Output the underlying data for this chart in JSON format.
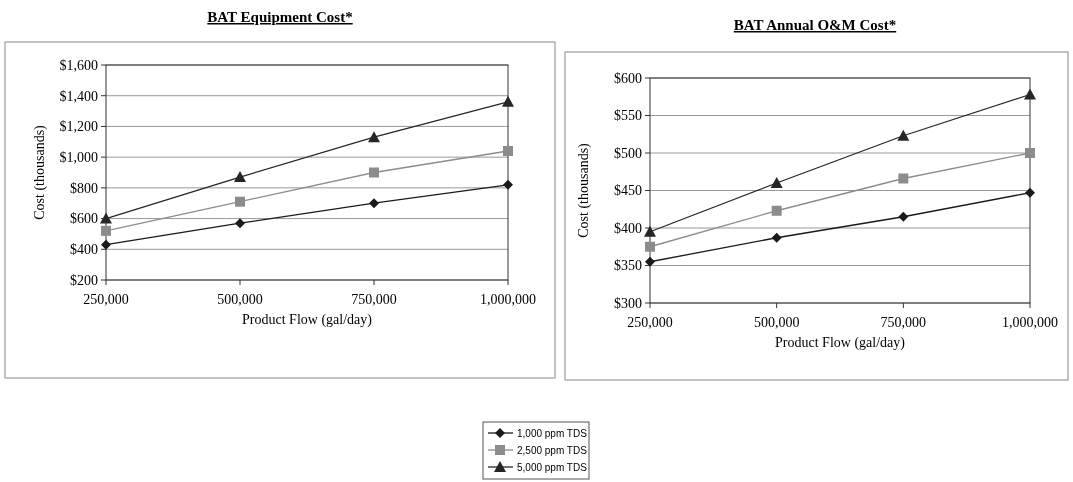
{
  "chart_data": [
    {
      "type": "line",
      "title": "BAT Equipment Cost*",
      "xlabel": "Product Flow (gal/day)",
      "ylabel": "Cost (thousands)",
      "x": [
        250000,
        500000,
        750000,
        1000000
      ],
      "xlim": [
        250000,
        1000000
      ],
      "xticks": [
        {
          "value": 250000,
          "label": "250,000"
        },
        {
          "value": 500000,
          "label": "500,000"
        },
        {
          "value": 750000,
          "label": "750,000"
        },
        {
          "value": 1000000,
          "label": "1,000,000"
        }
      ],
      "ylim": [
        200,
        1600
      ],
      "yticks": [
        {
          "value": 200,
          "label": "$200"
        },
        {
          "value": 400,
          "label": "$400"
        },
        {
          "value": 600,
          "label": "$600"
        },
        {
          "value": 800,
          "label": "$800"
        },
        {
          "value": 1000,
          "label": "$1,000"
        },
        {
          "value": 1200,
          "label": "$1,200"
        },
        {
          "value": 1400,
          "label": "$1,400"
        },
        {
          "value": 1600,
          "label": "$1,600"
        }
      ],
      "grid": "y",
      "legend": "bottom",
      "series": [
        {
          "name": "1,000 ppm TDS",
          "color": "#1a1a1a",
          "marker": "diamond",
          "values": [
            430,
            570,
            700,
            820
          ]
        },
        {
          "name": "2,500 ppm TDS",
          "color": "#8c8c8c",
          "marker": "square",
          "values": [
            520,
            710,
            900,
            1040
          ]
        },
        {
          "name": "5,000 ppm TDS",
          "color": "#262626",
          "marker": "triangle",
          "values": [
            600,
            870,
            1130,
            1360
          ]
        }
      ]
    },
    {
      "type": "line",
      "title": "BAT Annual O&M Cost*",
      "xlabel": "Product Flow (gal/day)",
      "ylabel": "Cost (thousands)",
      "x": [
        250000,
        500000,
        750000,
        1000000
      ],
      "xlim": [
        250000,
        1000000
      ],
      "xticks": [
        {
          "value": 250000,
          "label": "250,000"
        },
        {
          "value": 500000,
          "label": "500,000"
        },
        {
          "value": 750000,
          "label": "750,000"
        },
        {
          "value": 1000000,
          "label": "1,000,000"
        }
      ],
      "ylim": [
        300,
        600
      ],
      "yticks": [
        {
          "value": 300,
          "label": "$300"
        },
        {
          "value": 350,
          "label": "$350"
        },
        {
          "value": 400,
          "label": "$400"
        },
        {
          "value": 450,
          "label": "$450"
        },
        {
          "value": 500,
          "label": "$500"
        },
        {
          "value": 550,
          "label": "$550"
        },
        {
          "value": 600,
          "label": "$600"
        }
      ],
      "grid": "y",
      "series": [
        {
          "color": "#1a1a1a",
          "marker": "diamond",
          "values": [
            355,
            387,
            415,
            447
          ]
        },
        {
          "color": "#8c8c8c",
          "marker": "square",
          "values": [
            375,
            423,
            466,
            500
          ]
        },
        {
          "color": "#262626",
          "marker": "triangle",
          "values": [
            395,
            460,
            523,
            578
          ]
        }
      ]
    }
  ]
}
